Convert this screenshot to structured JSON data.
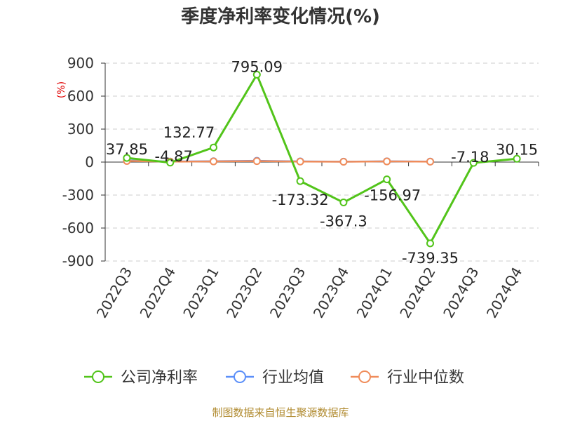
{
  "colors": {
    "company": "#52c41a",
    "industry_avg": "#5b8ff9",
    "industry_median": "#f08c5a",
    "grid": "#cccccc",
    "axis": "#333333",
    "unit": "#e00000",
    "source": "#b08a2e"
  },
  "chart_data": {
    "type": "line",
    "title": "季度净利率变化情况(%)",
    "ylabel": "(%)",
    "ylim": [
      -900,
      900
    ],
    "yticks": [
      "900",
      "600",
      "300",
      "0",
      "-300",
      "-600",
      "-900"
    ],
    "categories": [
      "2022Q3",
      "2022Q4",
      "2023Q1",
      "2023Q2",
      "2023Q3",
      "2023Q4",
      "2024Q1",
      "2024Q2",
      "2024Q3",
      "2024Q4"
    ],
    "grid": true,
    "legend_position": "bottom",
    "series": [
      {
        "name": "公司净利率",
        "values": [
          37.85,
          -4.87,
          132.77,
          795.09,
          -173.32,
          -367.3,
          -156.97,
          -739.35,
          -7.18,
          30.15
        ],
        "labels": [
          "37.85",
          "-4.87",
          "132.77",
          "795.09",
          "-173.32",
          "-367.3",
          "-156.97",
          "-739.35",
          "-7.18",
          "30.15"
        ]
      },
      {
        "name": "行业均值",
        "values": [
          15,
          5,
          8,
          12,
          6,
          4,
          7,
          5,
          null,
          null
        ]
      },
      {
        "name": "行业中位数",
        "values": [
          10,
          4,
          6,
          9,
          5,
          3,
          6,
          4,
          null,
          null
        ]
      }
    ]
  },
  "source": "制图数据来自恒生聚源数据库"
}
